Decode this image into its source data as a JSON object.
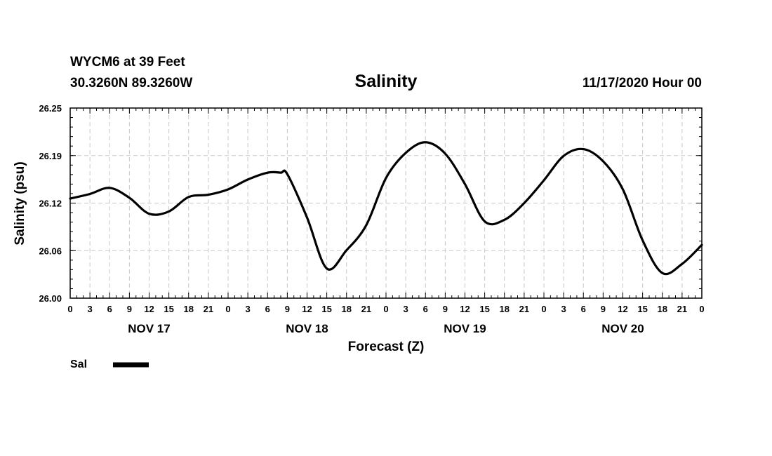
{
  "header": {
    "station": "WYCM6 at 39 Feet",
    "coords": "30.3260N 89.3260W",
    "title": "Salinity",
    "datetime": "11/17/2020 Hour 00"
  },
  "legend": {
    "label": "Sal"
  },
  "chart_data": {
    "type": "line",
    "title": "Salinity",
    "xlabel": "Forecast (Z)",
    "ylabel": "Salinity (psu)",
    "ylim": [
      26.0,
      26.25
    ],
    "xlim": [
      0,
      96
    ],
    "y_ticks": [
      "26.00",
      "26.06",
      "26.12",
      "26.19",
      "26.25"
    ],
    "y_tick_values": [
      26.0,
      26.0625,
      26.125,
      26.1875,
      26.25
    ],
    "x_tick_labels": [
      "0",
      "3",
      "6",
      "9",
      "12",
      "15",
      "18",
      "21",
      "0",
      "3",
      "6",
      "9",
      "12",
      "15",
      "18",
      "21",
      "0",
      "3",
      "6",
      "9",
      "12",
      "15",
      "18",
      "21",
      "0",
      "3",
      "6",
      "9",
      "12",
      "15",
      "18",
      "21",
      "0"
    ],
    "day_labels": [
      "NOV 17",
      "NOV 18",
      "NOV 19",
      "NOV 20"
    ],
    "grid": true,
    "legend_position": "bottom-left",
    "series": [
      {
        "name": "Sal",
        "x": [
          0,
          3,
          6,
          9,
          12,
          15,
          18,
          21,
          24,
          27,
          30,
          32,
          33,
          36,
          39,
          42,
          45,
          48,
          51,
          54,
          57,
          60,
          63,
          66,
          69,
          72,
          75,
          78,
          81,
          84,
          87,
          90,
          93,
          96
        ],
        "values": [
          26.131,
          26.137,
          26.145,
          26.132,
          26.111,
          26.114,
          26.133,
          26.136,
          26.143,
          26.156,
          26.165,
          26.165,
          26.163,
          26.106,
          26.039,
          26.063,
          26.096,
          26.158,
          26.191,
          26.205,
          26.19,
          26.15,
          26.101,
          26.103,
          26.125,
          26.155,
          26.187,
          26.196,
          26.18,
          26.143,
          26.076,
          26.033,
          26.045,
          26.07
        ]
      }
    ]
  }
}
